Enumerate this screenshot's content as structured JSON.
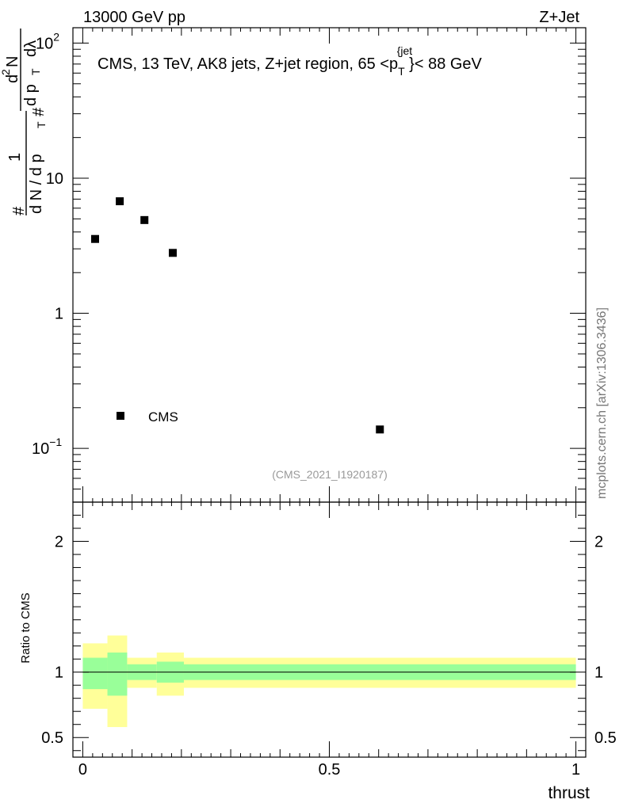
{
  "header": {
    "left": "13000 GeV pp",
    "right": "Z+Jet"
  },
  "chart_data": [
    {
      "type": "scatter",
      "title": "CMS, 13 TeV, AK8 jets, Z+jet region, 65 <p_T^{jet}< 88 GeV",
      "title_parts": [
        "CMS, 13 TeV, AK8 jets, Z+jet region, 65 <p",
        "T",
        "{jet",
        "}< 88 GeV"
      ],
      "ylabel_parts": [
        "#",
        "1",
        "d N / d p",
        "T",
        "#",
        "d",
        "2",
        "N",
        "d p",
        "T",
        "dλ"
      ],
      "yscale": "log",
      "ylim": [
        0.04,
        130
      ],
      "xlim": [
        -0.02,
        1.02
      ],
      "yticks": [
        {
          "value": 0.1,
          "base": "10",
          "exp": "−1"
        },
        {
          "value": 1,
          "base": "1",
          "exp": ""
        },
        {
          "value": 10,
          "base": "10",
          "exp": ""
        },
        {
          "value": 100,
          "base": "10",
          "exp": "2"
        }
      ],
      "series": [
        {
          "name": "CMS",
          "x": [
            0.025,
            0.075,
            0.125,
            0.1825,
            0.6025
          ],
          "y": [
            3.55,
            6.75,
            4.9,
            2.8,
            0.138
          ]
        }
      ],
      "legend": {
        "label": "CMS",
        "position": "bottom-left"
      },
      "analysis_label": "(CMS_2021_I1920187)",
      "side_label": "mcplots.cern.ch [arXiv:1306.3436]"
    },
    {
      "type": "area",
      "ylabel": "Ratio to CMS",
      "xlabel": "thrust",
      "xlim": [
        -0.02,
        1.02
      ],
      "ylim": [
        0.35,
        2.3
      ],
      "xticks": [
        {
          "value": 0,
          "label": "0"
        },
        {
          "value": 0.5,
          "label": "0.5"
        },
        {
          "value": 1,
          "label": "1"
        }
      ],
      "yticks": [
        {
          "value": 0.5,
          "label": "0.5"
        },
        {
          "value": 1,
          "label": "1"
        },
        {
          "value": 2,
          "label": "2"
        }
      ],
      "reference_line": 1,
      "bins": [
        {
          "x0": 0.0,
          "x1": 0.05,
          "inner": [
            0.87,
            1.11
          ],
          "outer": [
            0.72,
            1.22
          ]
        },
        {
          "x0": 0.05,
          "x1": 0.09,
          "inner": [
            0.82,
            1.15
          ],
          "outer": [
            0.58,
            1.28
          ]
        },
        {
          "x0": 0.09,
          "x1": 0.15,
          "inner": [
            0.94,
            1.06
          ],
          "outer": [
            0.88,
            1.11
          ]
        },
        {
          "x0": 0.15,
          "x1": 0.205,
          "inner": [
            0.92,
            1.08
          ],
          "outer": [
            0.82,
            1.15
          ]
        },
        {
          "x0": 0.205,
          "x1": 1.0,
          "inner": [
            0.94,
            1.06
          ],
          "outer": [
            0.88,
            1.11
          ]
        }
      ]
    }
  ],
  "colors": {
    "inner_band": "#99ff99",
    "outer_band": "#ffff99",
    "marker": "#000000",
    "side_label": "#777777",
    "analysis_label": "#999999"
  }
}
